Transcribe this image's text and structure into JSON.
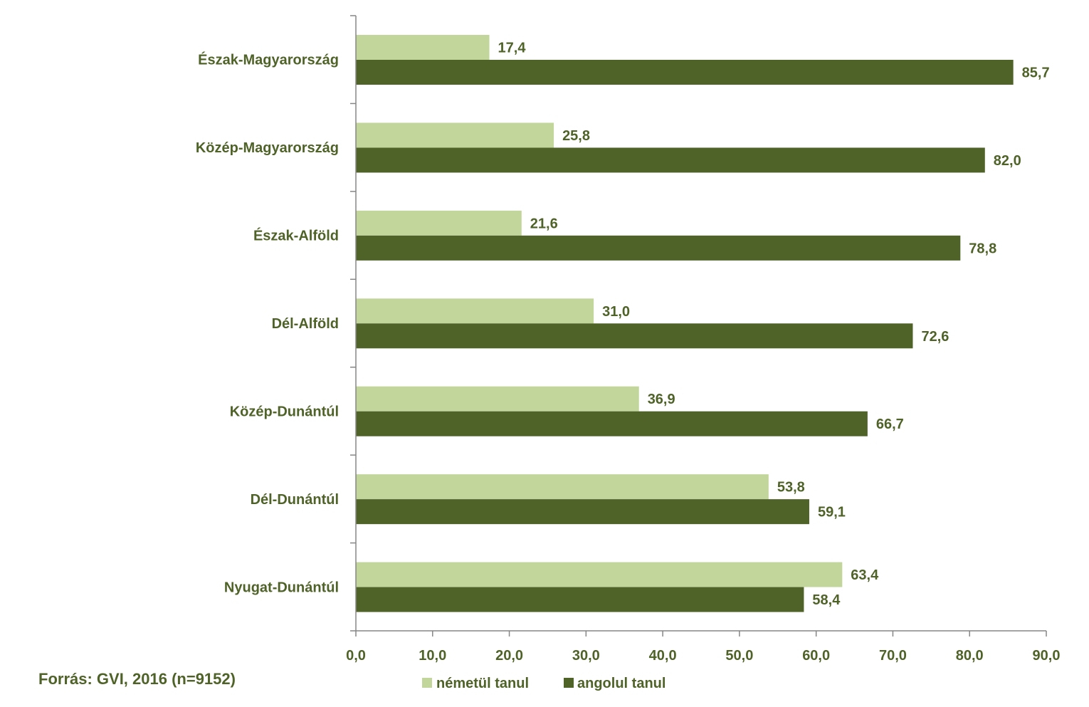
{
  "source_note": "Forrás: GVI, 2016 (n=9152)",
  "chart_data": {
    "type": "bar",
    "orientation": "horizontal",
    "categories": [
      "Észak-Magyarország",
      "Közép-Magyarország",
      "Észak-Alföld",
      "Dél-Alföld",
      "Közép-Dunántúl",
      "Dél-Dunántúl",
      "Nyugat-Dunántúl"
    ],
    "series": [
      {
        "name": "németül tanul",
        "color": "#c2d69b",
        "values": [
          17.4,
          25.8,
          21.6,
          31.0,
          36.9,
          53.8,
          63.4
        ],
        "labels": [
          "17,4",
          "25,8",
          "21,6",
          "31,0",
          "36,9",
          "53,8",
          "63,4"
        ]
      },
      {
        "name": "angolul tanul",
        "color": "#4f6228",
        "values": [
          85.7,
          82.0,
          78.8,
          72.6,
          66.7,
          59.1,
          58.4
        ],
        "labels": [
          "85,7",
          "82,0",
          "78,8",
          "72,6",
          "66,7",
          "59,1",
          "58,4"
        ]
      }
    ],
    "xlim": [
      0,
      90
    ],
    "xticks": [
      0,
      10,
      20,
      30,
      40,
      50,
      60,
      70,
      80,
      90
    ],
    "xtick_labels": [
      "0,0",
      "10,0",
      "20,0",
      "30,0",
      "40,0",
      "50,0",
      "60,0",
      "70,0",
      "80,0",
      "90,0"
    ],
    "grid": false,
    "legend_position": "bottom"
  }
}
